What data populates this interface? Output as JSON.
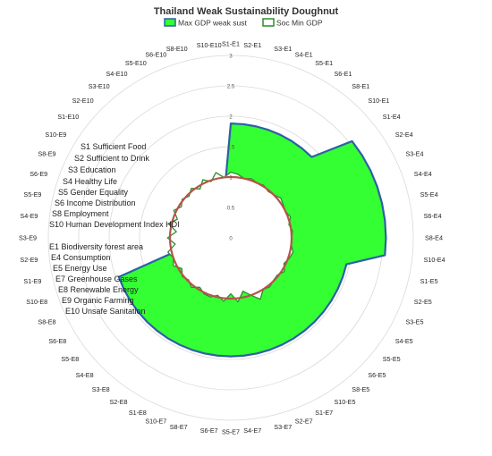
{
  "chart_data": {
    "type": "radar-area",
    "title": "Thailand Weak Sustainability Doughnut",
    "legend": {
      "placement": "top",
      "entries": [
        "Max GDP weak sust",
        "Soc Min GDP"
      ]
    },
    "colors": {
      "max_fill": "#33ff33",
      "max_stroke": "#2e5fa8",
      "soc_fill": "#ffffff",
      "soc_stroke": "#2e8b2e",
      "ring": "#b5544a",
      "grid": "#d9d9d9"
    },
    "rlim": [
      0,
      3
    ],
    "r_ticks": [
      "0",
      "0.5",
      "1",
      "1.5",
      "2",
      "2.5",
      "3"
    ],
    "ring_value": 1,
    "categories": [
      "S1-E1",
      "S2-E1",
      "S3-E1",
      "S4-E1",
      "S5-E1",
      "S6-E1",
      "S8-E1",
      "S10-E1",
      "S1-E4",
      "S2-E4",
      "S3-E4",
      "S4-E4",
      "S5-E4",
      "S6-E4",
      "S8-E4",
      "S10-E4",
      "S1-E5",
      "S2-E5",
      "S3-E5",
      "S4-E5",
      "S5-E5",
      "S6-E5",
      "S8-E5",
      "S10-E5",
      "S1-E7",
      "S2-E7",
      "S3-E7",
      "S4-E7",
      "S5-E7",
      "S6-E7",
      "S8-E7",
      "S10-E7",
      "S1-E8",
      "S2-E8",
      "S3-E8",
      "S4-E8",
      "S5-E8",
      "S6-E8",
      "S8-E8",
      "S10-E8",
      "S1-E9",
      "S2-E9",
      "S3-E9",
      "S4-E9",
      "S5-E9",
      "S6-E9",
      "S8-E9",
      "S10-E9",
      "S1-E10",
      "S2-E10",
      "S3-E10",
      "S4-E10",
      "S5-E10",
      "S6-E10",
      "S8-E10",
      "S10-E10"
    ],
    "series": [
      {
        "name": "Max GDP weak sust",
        "values": [
          1.88,
          1.88,
          1.88,
          1.88,
          1.88,
          1.88,
          1.88,
          1.88,
          2.55,
          2.55,
          2.55,
          2.55,
          2.55,
          2.55,
          2.55,
          2.55,
          1.95,
          1.95,
          1.95,
          1.95,
          1.95,
          1.95,
          1.95,
          1.95,
          1.95,
          1.95,
          1.95,
          1.95,
          1.95,
          1.95,
          1.95,
          1.95,
          1.95,
          1.95,
          1.95,
          1.95,
          1.95,
          1.95,
          1.95,
          1.95,
          0.85,
          0.85,
          0.85,
          0.85,
          0.85,
          0.85,
          0.85,
          0.85,
          0.85,
          0.85,
          0.85,
          0.85,
          0.85,
          0.85,
          0.85,
          0.85
        ]
      },
      {
        "name": "Soc Min GDP",
        "values": [
          1.08,
          1.05,
          1.0,
          1.03,
          1.0,
          1.02,
          0.98,
          1.0,
          1.05,
          1.02,
          1.0,
          1.04,
          0.98,
          1.02,
          1.0,
          1.0,
          1.05,
          1.02,
          0.97,
          1.04,
          0.98,
          0.99,
          1.03,
          1.0,
          1.12,
          1.0,
          0.9,
          1.06,
          0.92,
          1.05,
          0.97,
          1.03,
          1.02,
          0.96,
          1.04,
          0.98,
          1.02,
          0.95,
          1.05,
          1.0,
          1.06,
          0.92,
          1.04,
          0.9,
          1.05,
          0.93,
          1.04,
          0.96,
          1.02,
          0.97,
          1.04,
          0.95,
          1.06,
          0.98,
          1.1,
          1.0
        ]
      }
    ]
  },
  "key": {
    "social": [
      "S1  Sufficient Food",
      "S2  Sufficient to Drink",
      "S3  Education",
      "S4  Healthy Life",
      "S5  Gender Equality",
      "S6  Income Distribution",
      "S8  Employment",
      "S10  Human Development Index HDI"
    ],
    "ecological": [
      "E1  Biodiversity forest area",
      "E4  Consumption",
      "E5  Energy Use",
      "E7  Greenhouse Gases",
      "E8  Renewable Energy",
      "E9  Organic Farming",
      "E10  Unsafe Sanitation"
    ]
  }
}
